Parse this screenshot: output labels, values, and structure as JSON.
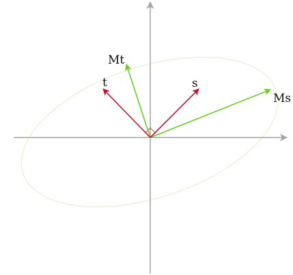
{
  "labels": {
    "t": "t",
    "s": "s",
    "Mt": "Mt",
    "Ms": "Ms"
  },
  "colors": {
    "axis": "#a6a6a6",
    "original_vector": "#c8102e",
    "transformed_vector": "#66cc22",
    "ellipse": "#e6eed4",
    "right_angle_mark": "#d9455a",
    "background": "#ffffff",
    "text": "#111111"
  }
}
